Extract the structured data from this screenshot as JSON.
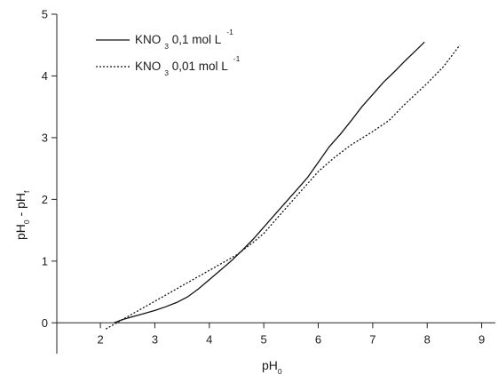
{
  "chart_data": {
    "type": "line",
    "x_label": {
      "main": "pH",
      "sub": "0"
    },
    "y_label": {
      "a": "pH",
      "a_sub": "0",
      "sep": " - ",
      "b": "pH",
      "b_sub": "f"
    },
    "xlim": [
      1.2,
      9.3
    ],
    "ylim": [
      -0.5,
      5
    ],
    "xticks": [
      2,
      3,
      4,
      5,
      6,
      7,
      8,
      9
    ],
    "yticks": [
      0,
      1,
      2,
      3,
      4,
      5
    ],
    "grid": false,
    "legend_position": "top-left",
    "series": [
      {
        "name": "KNO 3 0,1 mol L -1",
        "label": {
          "pre": "KNO",
          "sub": "3",
          "mid": " 0,1 mol L",
          "sup": "-1"
        },
        "style": "solid",
        "color": "#111111",
        "points": [
          [
            2.25,
            0.0
          ],
          [
            2.4,
            0.05
          ],
          [
            2.6,
            0.1
          ],
          [
            2.8,
            0.15
          ],
          [
            3.0,
            0.2
          ],
          [
            3.2,
            0.26
          ],
          [
            3.4,
            0.33
          ],
          [
            3.6,
            0.42
          ],
          [
            3.8,
            0.55
          ],
          [
            4.0,
            0.7
          ],
          [
            4.2,
            0.85
          ],
          [
            4.4,
            1.0
          ],
          [
            4.6,
            1.17
          ],
          [
            4.8,
            1.35
          ],
          [
            5.0,
            1.55
          ],
          [
            5.2,
            1.75
          ],
          [
            5.4,
            1.95
          ],
          [
            5.6,
            2.15
          ],
          [
            5.8,
            2.35
          ],
          [
            6.0,
            2.6
          ],
          [
            6.2,
            2.85
          ],
          [
            6.4,
            3.05
          ],
          [
            6.6,
            3.27
          ],
          [
            6.8,
            3.5
          ],
          [
            7.0,
            3.7
          ],
          [
            7.2,
            3.9
          ],
          [
            7.4,
            4.07
          ],
          [
            7.6,
            4.25
          ],
          [
            7.8,
            4.42
          ],
          [
            7.95,
            4.55
          ]
        ]
      },
      {
        "name": "KNO 3 0,01 mol L -1",
        "label": {
          "pre": "KNO",
          "sub": "3",
          "mid": " 0,01 mol L",
          "sup": "-1"
        },
        "style": "dotted",
        "color": "#111111",
        "points": [
          [
            2.1,
            -0.1
          ],
          [
            2.3,
            0.0
          ],
          [
            2.5,
            0.1
          ],
          [
            2.8,
            0.25
          ],
          [
            3.0,
            0.35
          ],
          [
            3.3,
            0.5
          ],
          [
            3.6,
            0.65
          ],
          [
            3.9,
            0.8
          ],
          [
            4.2,
            0.95
          ],
          [
            4.5,
            1.1
          ],
          [
            4.8,
            1.3
          ],
          [
            5.0,
            1.45
          ],
          [
            5.2,
            1.65
          ],
          [
            5.5,
            1.95
          ],
          [
            5.8,
            2.25
          ],
          [
            6.0,
            2.45
          ],
          [
            6.3,
            2.68
          ],
          [
            6.6,
            2.88
          ],
          [
            7.0,
            3.1
          ],
          [
            7.3,
            3.28
          ],
          [
            7.6,
            3.55
          ],
          [
            8.0,
            3.88
          ],
          [
            8.3,
            4.15
          ],
          [
            8.6,
            4.5
          ]
        ]
      }
    ]
  }
}
